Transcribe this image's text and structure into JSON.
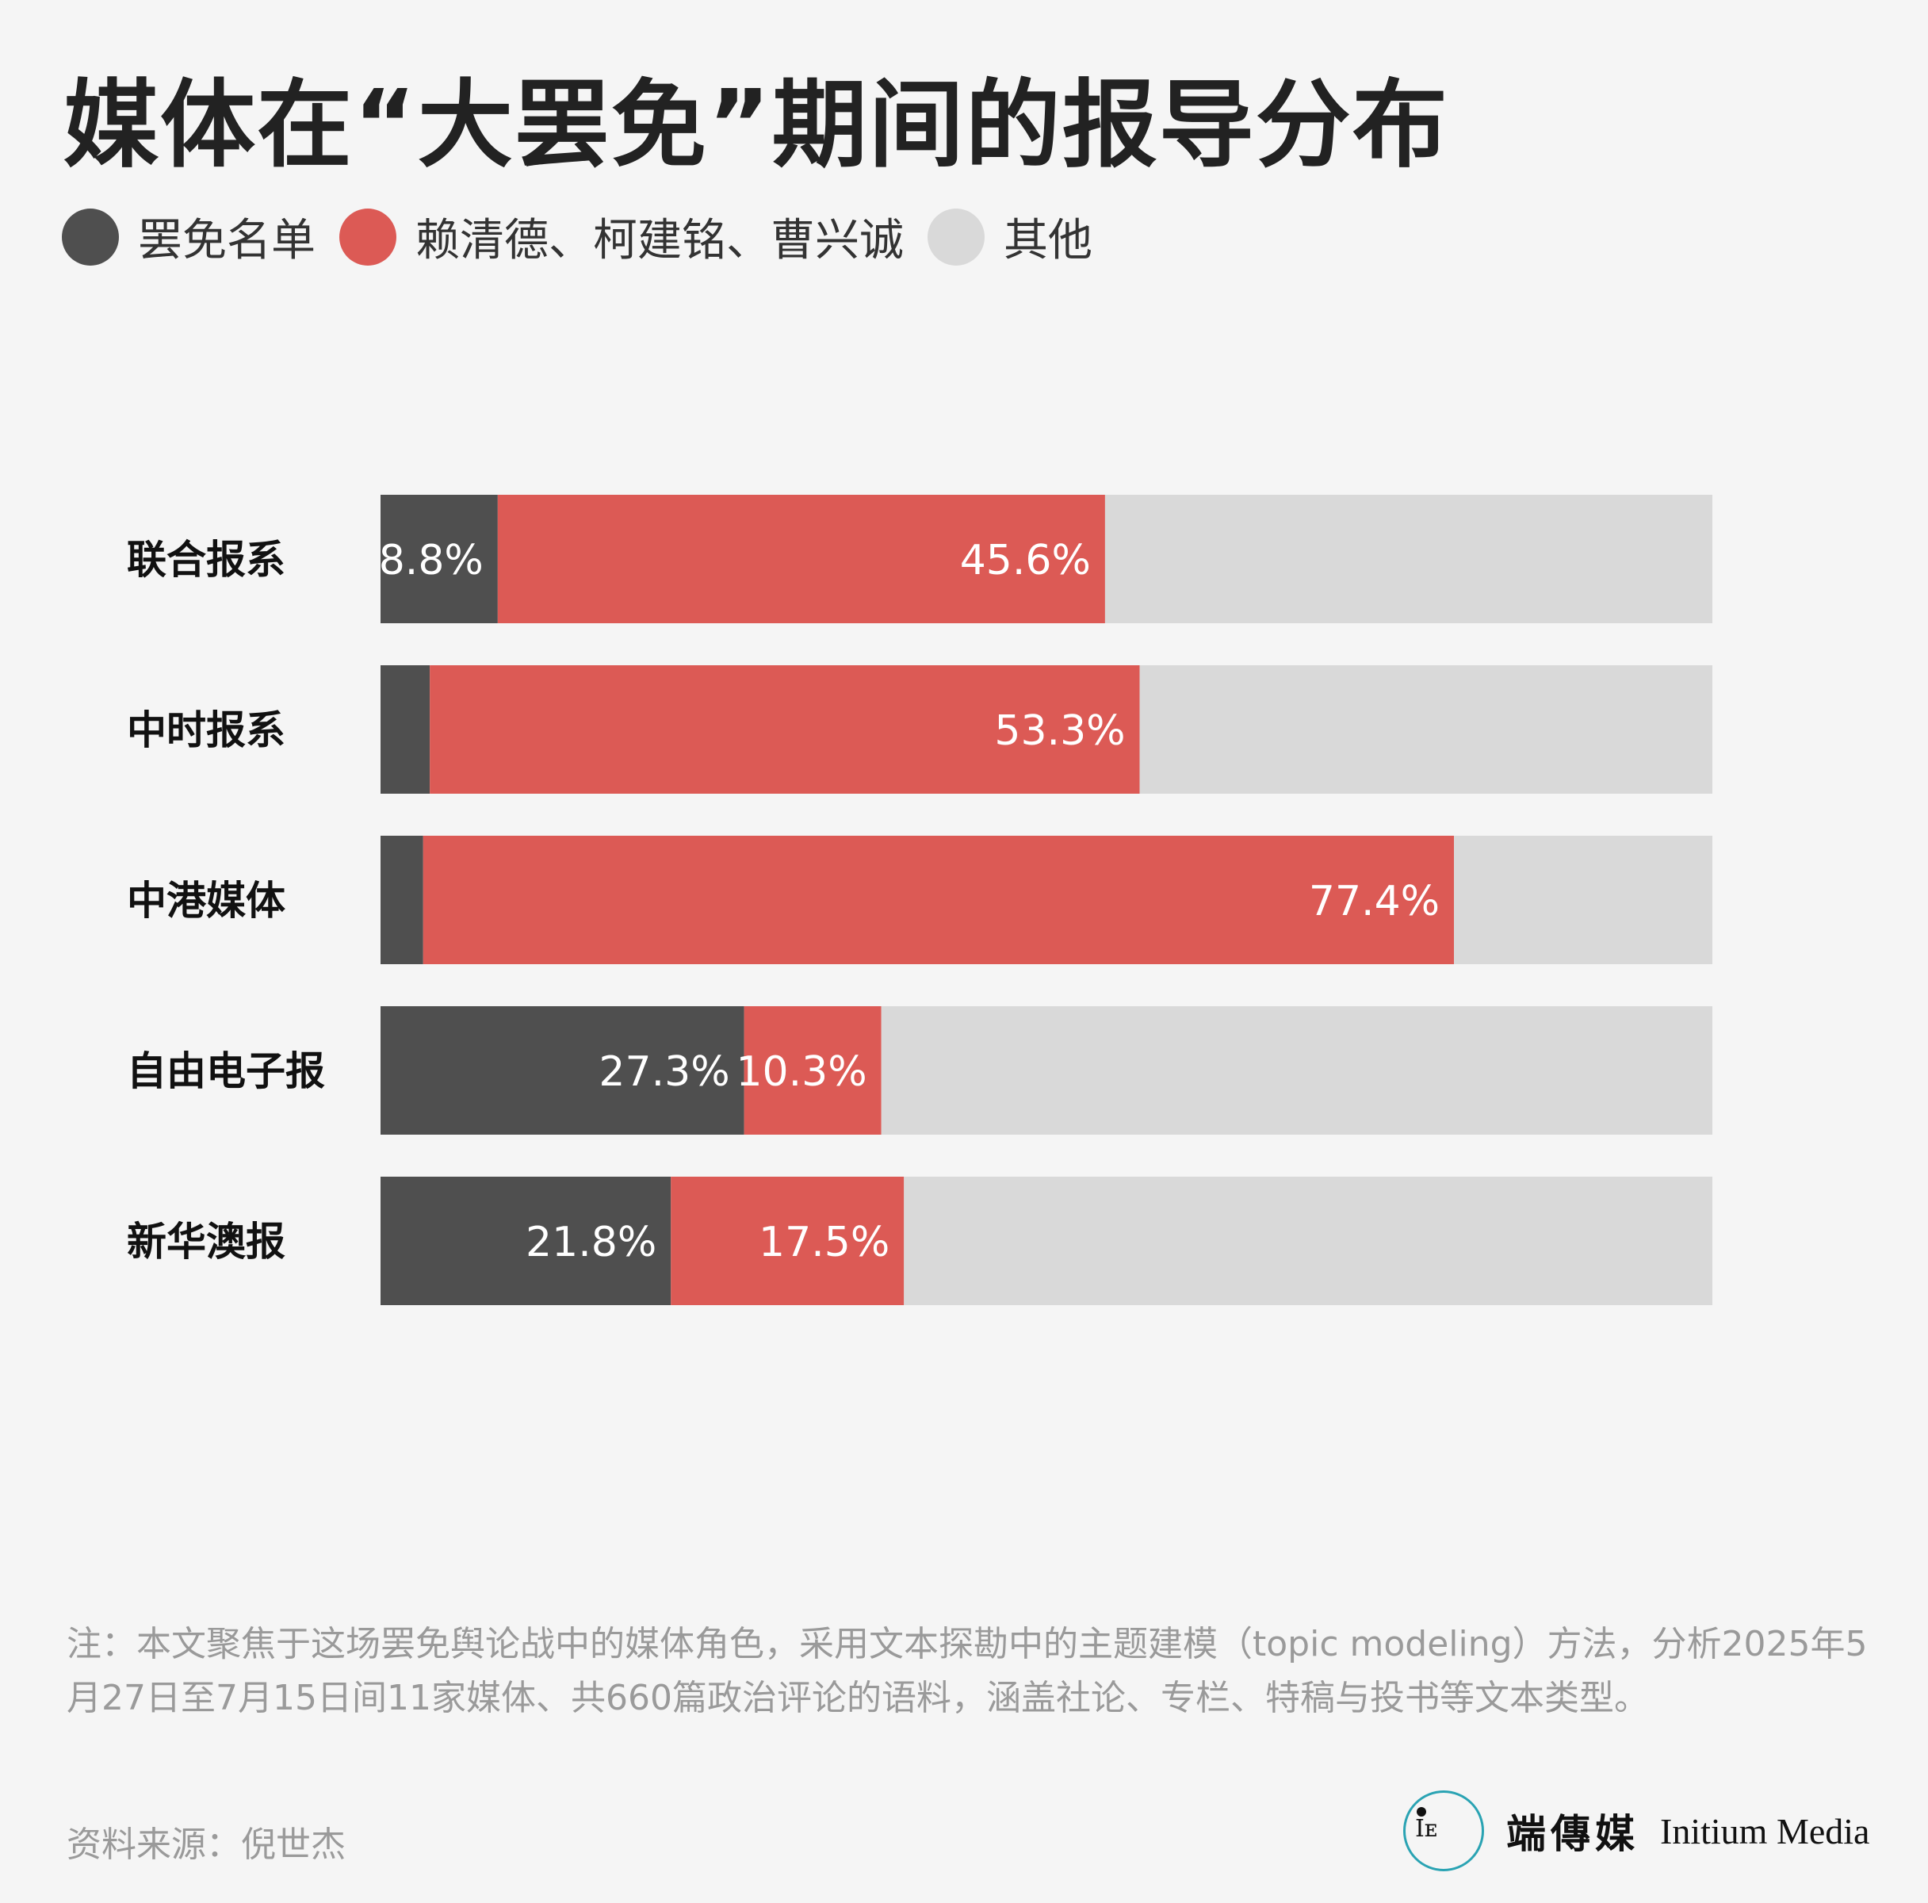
{
  "title": "媒体在“大罢免”期间的报导分布",
  "legend": [
    {
      "label": "罢免名单",
      "color": "#4f4f4f"
    },
    {
      "label": "赖清德、柯建铭、曹兴诚",
      "color": "#dc5a55"
    },
    {
      "label": "其他",
      "color": "#d9d9d9"
    }
  ],
  "chart_data": {
    "type": "bar",
    "orientation": "horizontal",
    "stacked": true,
    "xlim": [
      0,
      100
    ],
    "categories": [
      "联合报系",
      "中时报系",
      "中港媒体",
      "自由电子报",
      "新华澳报"
    ],
    "series": [
      {
        "name": "罢免名单",
        "values": [
          8.8,
          3.7,
          3.2,
          27.3,
          21.8
        ],
        "labels": [
          "8.8%",
          "",
          "",
          "27.3%",
          "21.8%"
        ]
      },
      {
        "name": "赖清德、柯建铭、曹兴诚",
        "values": [
          45.6,
          53.3,
          77.4,
          10.3,
          17.5
        ],
        "labels": [
          "45.6%",
          "53.3%",
          "77.4%",
          "10.3%",
          "17.5%"
        ]
      },
      {
        "name": "其他",
        "values": [
          45.6,
          43.0,
          19.4,
          62.4,
          60.7
        ],
        "labels": [
          "",
          "",
          "",
          "",
          ""
        ]
      }
    ]
  },
  "note": "注：本文聚焦于这场罢免舆论战中的媒体角色，采用文本探勘中的主题建模（topic modeling）方法，分析2025年5月27日至7月15日间11家媒体、共660篇政治评论的语料，涵盖社论、专栏、特稿与投书等文本类型。",
  "source": "资料来源：倪世杰",
  "brand": {
    "cn": "端傳媒",
    "en": "Initium Media",
    "mark_glyph": "Iᴇ",
    "ring_color": "#2aa3b3"
  }
}
